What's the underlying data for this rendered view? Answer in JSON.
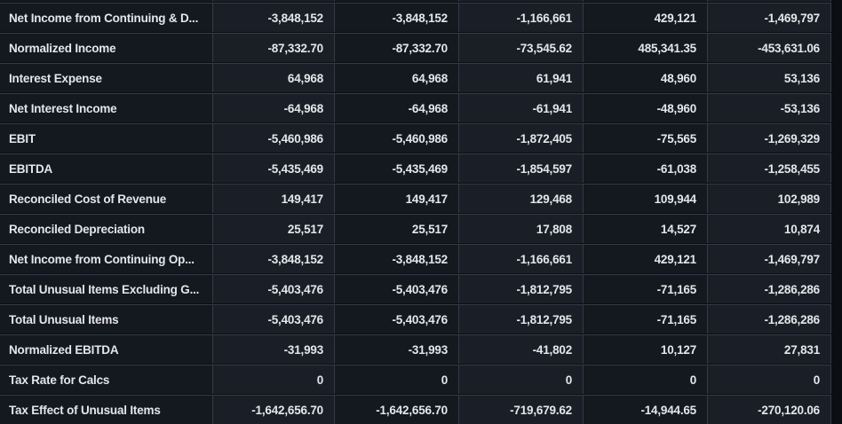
{
  "table": {
    "rows": [
      {
        "label": "Net Income from Continuing & D...",
        "values": [
          "-3,848,152",
          "-3,848,152",
          "-1,166,661",
          "429,121",
          "-1,469,797"
        ]
      },
      {
        "label": "Normalized Income",
        "values": [
          "-87,332.70",
          "-87,332.70",
          "-73,545.62",
          "485,341.35",
          "-453,631.06"
        ]
      },
      {
        "label": "Interest Expense",
        "values": [
          "64,968",
          "64,968",
          "61,941",
          "48,960",
          "53,136"
        ]
      },
      {
        "label": "Net Interest Income",
        "values": [
          "-64,968",
          "-64,968",
          "-61,941",
          "-48,960",
          "-53,136"
        ]
      },
      {
        "label": "EBIT",
        "values": [
          "-5,460,986",
          "-5,460,986",
          "-1,872,405",
          "-75,565",
          "-1,269,329"
        ]
      },
      {
        "label": "EBITDA",
        "values": [
          "-5,435,469",
          "-5,435,469",
          "-1,854,597",
          "-61,038",
          "-1,258,455"
        ]
      },
      {
        "label": "Reconciled Cost of Revenue",
        "values": [
          "149,417",
          "149,417",
          "129,468",
          "109,944",
          "102,989"
        ]
      },
      {
        "label": "Reconciled Depreciation",
        "values": [
          "25,517",
          "25,517",
          "17,808",
          "14,527",
          "10,874"
        ]
      },
      {
        "label": "Net Income from Continuing Op...",
        "values": [
          "-3,848,152",
          "-3,848,152",
          "-1,166,661",
          "429,121",
          "-1,469,797"
        ]
      },
      {
        "label": "Total Unusual Items Excluding G...",
        "values": [
          "-5,403,476",
          "-5,403,476",
          "-1,812,795",
          "-71,165",
          "-1,286,286"
        ]
      },
      {
        "label": "Total Unusual Items",
        "values": [
          "-5,403,476",
          "-5,403,476",
          "-1,812,795",
          "-71,165",
          "-1,286,286"
        ]
      },
      {
        "label": "Normalized EBITDA",
        "values": [
          "-31,993",
          "-31,993",
          "-41,802",
          "10,127",
          "27,831"
        ]
      },
      {
        "label": "Tax Rate for Calcs",
        "values": [
          "0",
          "0",
          "0",
          "0",
          "0"
        ]
      },
      {
        "label": "Tax Effect of Unusual Items",
        "values": [
          "-1,642,656.70",
          "-1,642,656.70",
          "-719,679.62",
          "-14,944.65",
          "-270,120.06"
        ]
      }
    ]
  },
  "colors": {
    "background": "#0b0e12",
    "cell_dark": "#14181f",
    "cell_light": "#1a1f27",
    "border": "#343b45",
    "text": "#e3e6ea"
  }
}
